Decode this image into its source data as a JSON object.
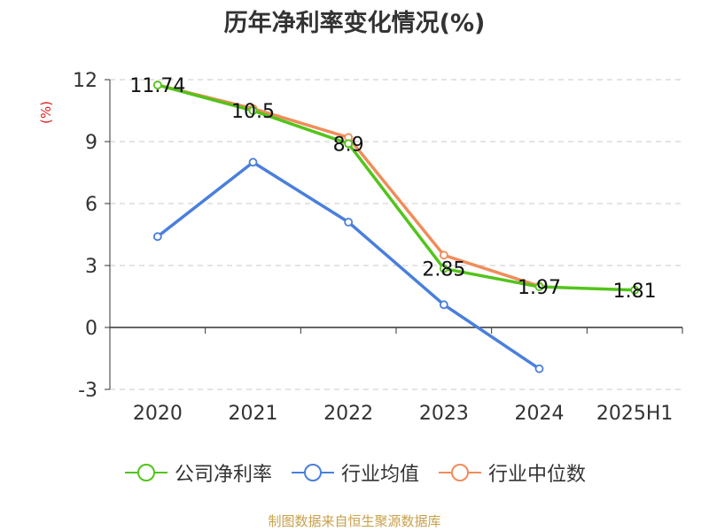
{
  "chart_data": {
    "type": "line",
    "title": "历年净利率变化情况(%)",
    "ylabel": "(%)",
    "xlabel": "",
    "categories": [
      "2020",
      "2021",
      "2022",
      "2023",
      "2024",
      "2025H1"
    ],
    "ylim": [
      -3,
      12
    ],
    "yticks": [
      12,
      9,
      6,
      3,
      0,
      -3
    ],
    "grid": true,
    "legend_position": "bottom",
    "series": [
      {
        "name": "公司净利率",
        "color": "#52c41a",
        "values": [
          11.74,
          10.5,
          8.9,
          2.85,
          1.97,
          1.81
        ],
        "labels": [
          "11.74",
          "10.5",
          "8.9",
          "2.85",
          "1.97",
          "1.81"
        ]
      },
      {
        "name": "行业均值",
        "color": "#4a7fdc",
        "values": [
          4.4,
          8.0,
          5.1,
          1.1,
          -2.0,
          null
        ]
      },
      {
        "name": "行业中位数",
        "color": "#f08c5a",
        "values": [
          11.74,
          10.6,
          9.2,
          3.5,
          2.0,
          null
        ]
      }
    ]
  },
  "source": "制图数据来自恒生聚源数据库"
}
